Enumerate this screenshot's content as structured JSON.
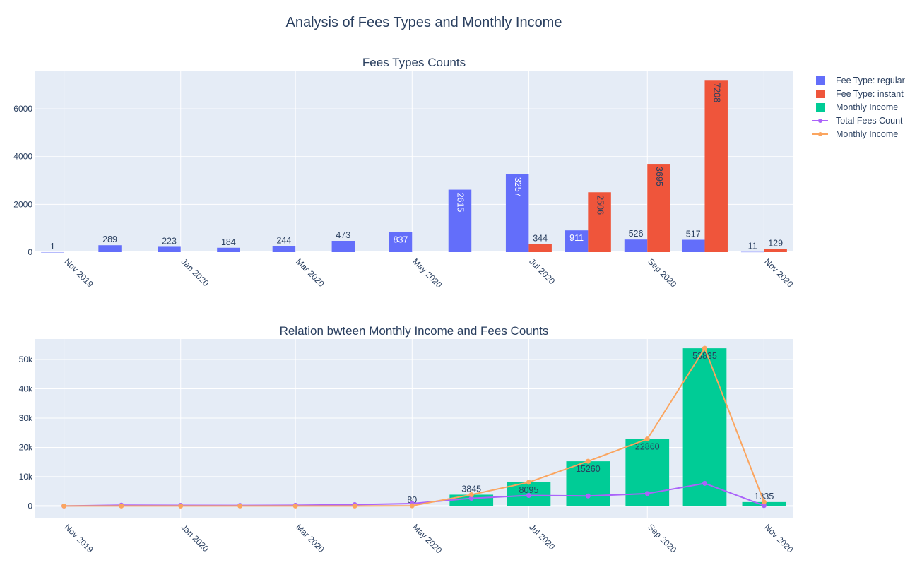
{
  "title": "Analysis of Fees Types and Monthly Income",
  "colors": {
    "regular": "#636efa",
    "instant": "#ef553b",
    "income_bar": "#00cc96",
    "total_line": "#ab63fa",
    "income_line": "#fba55f",
    "plot_bg": "#e5ecf6",
    "text": "#2a3f5f"
  },
  "legend": [
    {
      "label": "Fee Type: regular",
      "kind": "bar",
      "color": "#636efa"
    },
    {
      "label": "Fee Type: instant",
      "kind": "bar",
      "color": "#ef553b"
    },
    {
      "label": "Monthly Income",
      "kind": "bar",
      "color": "#00cc96"
    },
    {
      "label": "Total Fees Count",
      "kind": "line",
      "color": "#ab63fa"
    },
    {
      "label": "Monthly Income",
      "kind": "line",
      "color": "#fba55f"
    }
  ],
  "chart_data": [
    {
      "type": "bar",
      "title": "Fees Types Counts",
      "x": [
        "2019-11-01",
        "2019-12-01",
        "2020-01-01",
        "2020-02-01",
        "2020-03-01",
        "2020-04-01",
        "2020-05-01",
        "2020-06-01",
        "2020-07-01",
        "2020-08-01",
        "2020-09-01",
        "2020-10-01",
        "2020-11-01"
      ],
      "x_ticks": [
        "Nov 2019",
        "Jan 2020",
        "Mar 2020",
        "May 2020",
        "Jul 2020",
        "Sep 2020",
        "Nov 2020"
      ],
      "y_ticks": [
        "0",
        "2000",
        "4000",
        "6000"
      ],
      "ylim": [
        0,
        7600
      ],
      "grid": true,
      "series": [
        {
          "name": "Fee Type: regular",
          "values": [
            1,
            289,
            223,
            184,
            244,
            473,
            837,
            2615,
            3257,
            911,
            526,
            517,
            11
          ]
        },
        {
          "name": "Fee Type: instant",
          "values": [
            null,
            null,
            null,
            null,
            null,
            null,
            null,
            null,
            344,
            2506,
            3695,
            7208,
            129
          ]
        }
      ]
    },
    {
      "type": "bar",
      "title": "Relation bwteen Monthly Income and Fees Counts",
      "x": [
        "2019-11-01",
        "2019-12-01",
        "2020-01-01",
        "2020-02-01",
        "2020-03-01",
        "2020-04-01",
        "2020-05-01",
        "2020-06-01",
        "2020-07-01",
        "2020-08-01",
        "2020-09-01",
        "2020-10-01",
        "2020-11-01"
      ],
      "x_ticks": [
        "Nov 2019",
        "Jan 2020",
        "Mar 2020",
        "May 2020",
        "Jul 2020",
        "Sep 2020",
        "Nov 2020"
      ],
      "y_ticks": [
        "0",
        "10k",
        "20k",
        "30k",
        "40k",
        "50k"
      ],
      "ylim": [
        -4000,
        57000
      ],
      "grid": true,
      "series": [
        {
          "name": "Monthly Income",
          "kind": "bar",
          "values": [
            0,
            0,
            0,
            0,
            0,
            0,
            80,
            3845,
            8095,
            15260,
            22860,
            53835,
            1335
          ]
        },
        {
          "name": "Total Fees Count",
          "kind": "line",
          "values": [
            1,
            289,
            223,
            184,
            244,
            473,
            837,
            2615,
            3601,
            3417,
            4221,
            7725,
            140
          ]
        },
        {
          "name": "Monthly Income",
          "kind": "line",
          "values": [
            0,
            0,
            0,
            0,
            0,
            0,
            80,
            3845,
            8095,
            15260,
            22860,
            53835,
            1335
          ]
        }
      ],
      "bar_labels": [
        "",
        "",
        "",
        "",
        "",
        "",
        "80",
        "3845",
        "8095",
        "15260",
        "22860",
        "53835",
        "1335"
      ]
    }
  ]
}
